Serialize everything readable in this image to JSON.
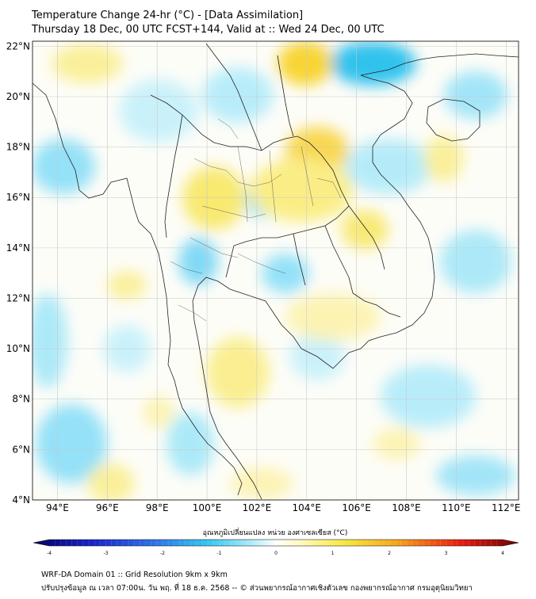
{
  "header": {
    "title_line1": "Temperature Change 24-hr (°C) - [Data Assimilation]",
    "title_line2": "Thursday 18 Dec, 00 UTC FCST+144, Valid at :: Wed 24 Dec, 00 UTC"
  },
  "map": {
    "lon_range": [
      93,
      112.5
    ],
    "lat_range": [
      4,
      22.2
    ],
    "lon_ticks": [
      {
        "value": 94,
        "label": "94°E"
      },
      {
        "value": 96,
        "label": "96°E"
      },
      {
        "value": 98,
        "label": "98°E"
      },
      {
        "value": 100,
        "label": "100°E"
      },
      {
        "value": 102,
        "label": "102°E"
      },
      {
        "value": 104,
        "label": "104°E"
      },
      {
        "value": 106,
        "label": "106°E"
      },
      {
        "value": 108,
        "label": "108°E"
      },
      {
        "value": 110,
        "label": "110°E"
      },
      {
        "value": 112,
        "label": "112°E"
      }
    ],
    "lat_ticks": [
      {
        "value": 22,
        "label": "22°N"
      },
      {
        "value": 20,
        "label": "20°N"
      },
      {
        "value": 18,
        "label": "18°N"
      },
      {
        "value": 16,
        "label": "16°N"
      },
      {
        "value": 14,
        "label": "14°N"
      },
      {
        "value": 12,
        "label": "12°N"
      },
      {
        "value": 10,
        "label": "10°N"
      },
      {
        "value": 8,
        "label": "8°N"
      },
      {
        "value": 6,
        "label": "6°N"
      },
      {
        "value": 4,
        "label": "4°N"
      }
    ]
  },
  "colorbar": {
    "label": "อุณหภูมิเปลี่ยนแปลง หน่วย องศาเซลเซียส (°C)",
    "min": -4,
    "max": 4,
    "ticks": [
      {
        "value": -4,
        "label": "-4"
      },
      {
        "value": -3,
        "label": "-3"
      },
      {
        "value": -2,
        "label": "-2"
      },
      {
        "value": -1,
        "label": "-1"
      },
      {
        "value": 0,
        "label": "0"
      },
      {
        "value": 1,
        "label": "1"
      },
      {
        "value": 2,
        "label": "2"
      },
      {
        "value": 3,
        "label": "3"
      },
      {
        "value": 4,
        "label": "4"
      }
    ]
  },
  "footer": {
    "line1": "WRF-DA Domain 01 :: Grid Resolution 9km x 9km",
    "line2": "ปรับปรุงข้อมูล ณ เวลา 07:00น. วัน พฤ. ที่ 18 ธ.ค. 2568 -- © ส่วนพยากรณ์อากาศเชิงตัวเลข กองพยากรณ์อากาศ กรมอุตุนิยมวิทยา"
  }
}
